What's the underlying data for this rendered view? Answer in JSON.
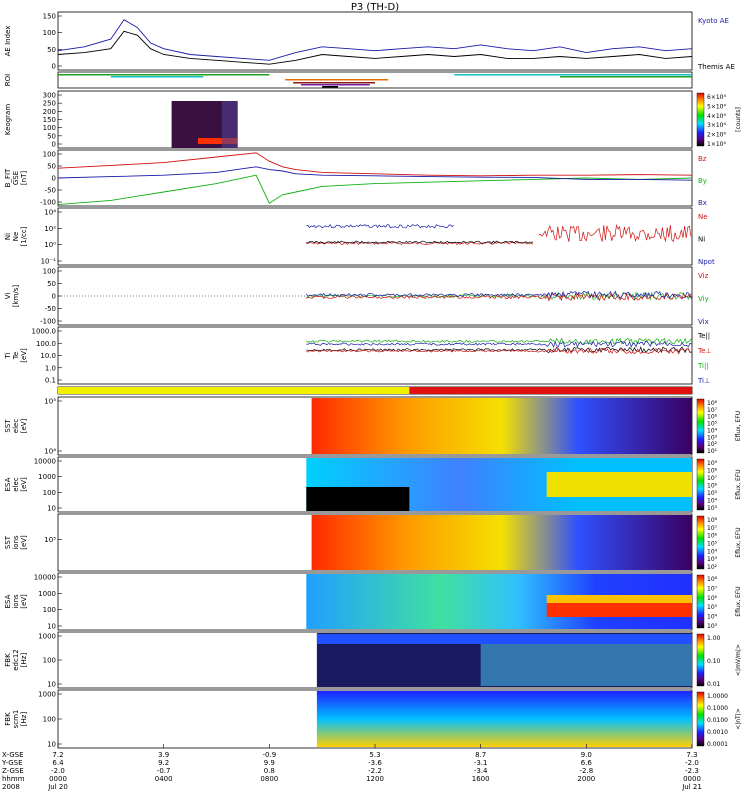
{
  "title": "P3 (TH-D)",
  "panels": [
    {
      "id": "ae",
      "ylabel": [
        "AE Index"
      ],
      "yticks": [
        "0",
        "50",
        "100",
        "150"
      ],
      "legend": [
        {
          "text": "Kyoto AE",
          "color": "#1a1aa8"
        },
        {
          "text": "Themis AE",
          "color": "#000000"
        }
      ]
    },
    {
      "id": "roi",
      "ylabel": [
        "ROI"
      ],
      "yticks": [],
      "legend": []
    },
    {
      "id": "keogram",
      "ylabel": [
        "Keogram"
      ],
      "yticks": [
        "0",
        "50",
        "100",
        "150",
        "200",
        "250",
        "300"
      ],
      "colorbar": {
        "labels": [
          "6×10⁴",
          "5×10⁴",
          "4×10⁴",
          "3×10⁴",
          "2×10⁴",
          "1×10⁴"
        ],
        "title": "[counts]"
      }
    },
    {
      "id": "bfield",
      "ylabel": [
        "B_FIT",
        "GSE",
        "[nT]"
      ],
      "yticks": [
        "-100",
        "-50",
        "0",
        "50",
        "100"
      ],
      "legend": [
        {
          "text": "Bz",
          "color": "#d01010"
        },
        {
          "text": "By",
          "color": "#10b010"
        },
        {
          "text": "Bx",
          "color": "#1a1aa8"
        }
      ]
    },
    {
      "id": "density",
      "ylabel": [
        "Ni",
        "Ne",
        "[1/cc]"
      ],
      "yticks": [
        "10⁻¹",
        "10⁰",
        "10²",
        "10⁴"
      ],
      "legend": [
        {
          "text": "Ne",
          "color": "#d01010"
        },
        {
          "text": "Ni",
          "color": "#000000"
        },
        {
          "text": "Npot",
          "color": "#1a1aa8"
        }
      ]
    },
    {
      "id": "velocity",
      "ylabel": [
        "Vi",
        "[km/s]"
      ],
      "yticks": [
        "-100",
        "-50",
        "0",
        "50",
        "100"
      ],
      "legend": [
        {
          "text": "Viz",
          "color": "#d01010"
        },
        {
          "text": "Viy",
          "color": "#10b010"
        },
        {
          "text": "Vix",
          "color": "#1a1aa8"
        }
      ]
    },
    {
      "id": "temp",
      "ylabel": [
        "Ti",
        "Te",
        "[eV]"
      ],
      "yticks": [
        "0.1",
        "1.0",
        "10.0",
        "100.0",
        "1000.0"
      ],
      "legend": [
        {
          "text": "Te||",
          "color": "#000000"
        },
        {
          "text": "Te⊥",
          "color": "#d01010"
        },
        {
          "text": "Ti||",
          "color": "#10b010"
        },
        {
          "text": "Ti⊥",
          "color": "#1a1aa8"
        }
      ]
    },
    {
      "id": "mode",
      "ylabel": [],
      "yticks": []
    },
    {
      "id": "sst_e",
      "ylabel": [
        "SST",
        "elec",
        "[eV]"
      ],
      "yticks": [
        "10⁴",
        "10⁵"
      ],
      "colorbar": {
        "labels": [
          "10⁸",
          "10⁷",
          "10⁶",
          "10⁵",
          "10⁴",
          "10³",
          "10²",
          "10¹"
        ],
        "title": "Eflux, EFU"
      }
    },
    {
      "id": "esa_e",
      "ylabel": [
        "ESA",
        "elec",
        "[eV]"
      ],
      "yticks": [
        "10",
        "100",
        "1000",
        "10000"
      ],
      "colorbar": {
        "labels": [
          "10⁹",
          "10⁸",
          "10⁷",
          "10⁶",
          "10⁵",
          "10⁴",
          "10³"
        ],
        "title": "Eflux, EFU"
      }
    },
    {
      "id": "sst_i",
      "ylabel": [
        "SST",
        "ions",
        "[eV]"
      ],
      "yticks": [
        "10⁵"
      ],
      "colorbar": {
        "labels": [
          "10⁸",
          "10⁷",
          "10⁶",
          "10⁵",
          "10⁴",
          "10³",
          "10²"
        ],
        "title": "Eflux, EFU"
      }
    },
    {
      "id": "esa_i",
      "ylabel": [
        "ESA",
        "ions",
        "[eV]"
      ],
      "yticks": [
        "10",
        "100",
        "1000",
        "10000"
      ],
      "colorbar": {
        "labels": [
          "10⁸",
          "10⁷",
          "10⁶",
          "10⁵",
          "10⁴",
          "10³"
        ],
        "title": "Eflux, EFU"
      }
    },
    {
      "id": "fbk_edc",
      "ylabel": [
        "FBK",
        "edc12",
        "[Hz]"
      ],
      "yticks": [
        "10",
        "100",
        "1000"
      ],
      "colorbar": {
        "labels": [
          "1.00",
          "0.10",
          "0.01"
        ],
        "title": "<|mV/m|>"
      }
    },
    {
      "id": "fbk_scm",
      "ylabel": [
        "FBK",
        "scm1",
        "[Hz]"
      ],
      "yticks": [
        "10",
        "100",
        "1000"
      ],
      "colorbar": {
        "labels": [
          "1.0000",
          "0.1000",
          "0.0100",
          "0.0010",
          "0.0001"
        ],
        "title": "<|nT|>"
      }
    }
  ],
  "xaxis": {
    "row_labels": [
      "X-GSE",
      "Y-GSE",
      "Z-GSE",
      "hhmm",
      "2008"
    ],
    "ticks": [
      {
        "vals": [
          "7.2",
          "6.4",
          "-2.0",
          "0000",
          "Jul 20"
        ]
      },
      {
        "vals": [
          "3.9",
          "9.2",
          "-0.7",
          "0400",
          ""
        ]
      },
      {
        "vals": [
          "-0.9",
          "9.9",
          "0.8",
          "0800",
          ""
        ]
      },
      {
        "vals": [
          "5.3",
          "-3.6",
          "-2.2",
          "1200",
          ""
        ]
      },
      {
        "vals": [
          "8.7",
          "-3.1",
          "-3.4",
          "1600",
          ""
        ]
      },
      {
        "vals": [
          "9.0",
          "6.6",
          "-2.8",
          "2000",
          ""
        ]
      },
      {
        "vals": [
          "7.3",
          "-2.0",
          "-2.3",
          "0000",
          "Jul 21"
        ]
      }
    ]
  },
  "chart_data": {
    "type": "line",
    "title": "P3 (TH-D)",
    "x_unit": "hhmm",
    "x_range": [
      "0000 Jul 20",
      "0000 Jul 21"
    ],
    "series": [
      {
        "name": "Kyoto AE",
        "panel": "ae",
        "x_hours": [
          0,
          1,
          2,
          2.5,
          3,
          3.5,
          4,
          5,
          6,
          7,
          8,
          9,
          10,
          11,
          12,
          13,
          14,
          15,
          16,
          17,
          18,
          19,
          20,
          21,
          22,
          23,
          24
        ],
        "values": [
          50,
          60,
          80,
          130,
          110,
          70,
          55,
          40,
          35,
          30,
          25,
          45,
          60,
          55,
          50,
          55,
          60,
          55,
          65,
          55,
          50,
          60,
          45,
          55,
          60,
          50,
          55
        ]
      },
      {
        "name": "Themis AE",
        "panel": "ae",
        "x_hours": [
          0,
          1,
          2,
          2.5,
          3,
          3.5,
          4,
          5,
          6,
          7,
          8,
          9,
          10,
          11,
          12,
          13,
          14,
          15,
          16,
          17,
          18,
          19,
          20,
          21,
          22,
          23,
          24
        ],
        "values": [
          40,
          45,
          55,
          100,
          90,
          55,
          40,
          30,
          25,
          20,
          15,
          25,
          40,
          35,
          30,
          35,
          40,
          35,
          40,
          30,
          30,
          35,
          30,
          35,
          40,
          30,
          35
        ]
      },
      {
        "name": "Bz",
        "panel": "bfield",
        "x_hours": [
          0,
          2,
          4,
          6,
          7.5,
          8,
          8.5,
          9,
          10,
          12,
          14,
          16,
          18,
          20,
          22,
          24
        ],
        "values": [
          35,
          45,
          55,
          75,
          90,
          60,
          40,
          30,
          20,
          15,
          10,
          8,
          10,
          10,
          12,
          10
        ]
      },
      {
        "name": "By",
        "panel": "bfield",
        "x_hours": [
          0,
          2,
          4,
          6,
          7.5,
          8,
          8.5,
          9,
          10,
          12,
          14,
          16,
          18,
          20,
          22,
          24
        ],
        "values": [
          -95,
          -80,
          -50,
          -20,
          10,
          -90,
          -60,
          -50,
          -30,
          -20,
          -15,
          -10,
          -5,
          0,
          -5,
          0
        ]
      },
      {
        "name": "Bx",
        "panel": "bfield",
        "x_hours": [
          0,
          2,
          4,
          6,
          7.5,
          8,
          8.5,
          9,
          10,
          12,
          14,
          16,
          18,
          20,
          22,
          24
        ],
        "values": [
          0,
          5,
          10,
          20,
          40,
          30,
          25,
          15,
          10,
          8,
          5,
          3,
          2,
          -5,
          -5,
          -8
        ]
      }
    ],
    "ylabels": {
      "ae": "AE Index",
      "bfield": "B_FIT GSE [nT]",
      "density": "Ni Ne [1/cc]",
      "velocity": "Vi [km/s]",
      "temp": "Ti Te [eV]"
    }
  }
}
